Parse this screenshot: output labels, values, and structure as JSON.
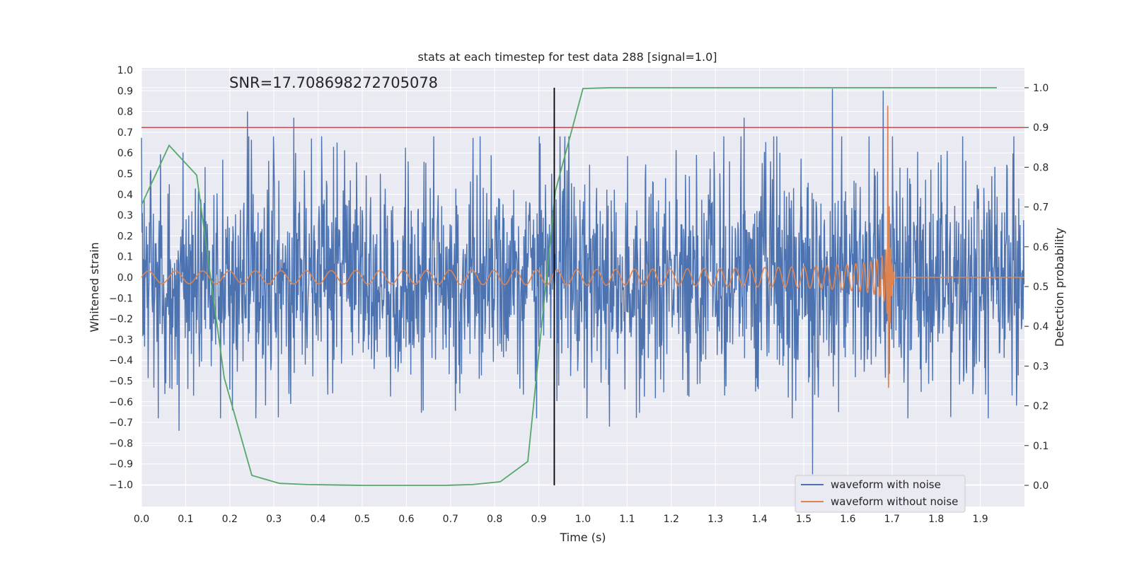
{
  "chart_data": {
    "type": "line",
    "title": "stats at each timestep for test data 288 [signal=1.0]",
    "xlabel": "Time (s)",
    "ylabel": "Whitened strain",
    "y2label": "Detection probability",
    "xlim": [
      0.0,
      2.0
    ],
    "ylim": [
      -1.09,
      1.0
    ],
    "y2lim": [
      -0.05,
      1.0
    ],
    "xticks": [
      "0.0",
      "0.1",
      "0.2",
      "0.3",
      "0.4",
      "0.5",
      "0.6",
      "0.7",
      "0.8",
      "0.9",
      "1.0",
      "1.1",
      "1.2",
      "1.3",
      "1.4",
      "1.5",
      "1.6",
      "1.7",
      "1.8",
      "1.9"
    ],
    "yticks": [
      "1.0",
      "0.9",
      "0.8",
      "0.7",
      "0.6",
      "0.5",
      "0.4",
      "0.3",
      "0.2",
      "0.1",
      "0.0",
      "−0.1",
      "−0.2",
      "−0.3",
      "−0.4",
      "−0.5",
      "−0.6",
      "−0.7",
      "−0.8",
      "−0.9",
      "−1.0"
    ],
    "y2ticks": [
      "1.0",
      "0.9",
      "0.8",
      "0.7",
      "0.6",
      "0.5",
      "0.4",
      "0.3",
      "0.2",
      "0.1",
      "0.0"
    ],
    "grid": true,
    "legend_position": "lower-right",
    "annotation": "SNR=17.708698272705078",
    "threshold_line": {
      "y2": 0.9,
      "color": "#c44e52"
    },
    "vertical_line": {
      "x": 0.935,
      "color": "#000000"
    },
    "series": [
      {
        "name": "waveform with noise",
        "color": "#4c72b0",
        "axis": "left",
        "generator": "noise",
        "sample_count": 2000,
        "amplitude_std": 0.26,
        "spikes": [
          {
            "x": 0.24,
            "y": 0.8
          },
          {
            "x": 0.345,
            "y": 0.77
          },
          {
            "x": 1.365,
            "y": 0.77
          },
          {
            "x": 1.52,
            "y": -0.95
          },
          {
            "x": 1.565,
            "y": 0.91
          },
          {
            "x": 1.68,
            "y": 0.9
          },
          {
            "x": 0.085,
            "y": -0.74
          },
          {
            "x": 1.06,
            "y": -0.72
          }
        ]
      },
      {
        "name": "waveform without noise",
        "color": "#dd8452",
        "axis": "left",
        "generator": "chirp",
        "merger_time": 1.69,
        "end_time": 1.705,
        "start_amplitude": 0.03,
        "peak_amplitude": 0.9,
        "start_frequency_hz": 16,
        "chirp_scale": 16
      },
      {
        "name": "",
        "color": "#55a868",
        "axis": "right",
        "x": [
          0.0,
          0.0625,
          0.125,
          0.1875,
          0.25,
          0.3125,
          0.375,
          0.4375,
          0.5,
          0.5625,
          0.625,
          0.6875,
          0.75,
          0.8125,
          0.875,
          0.9375,
          1.0,
          1.0625,
          1.125,
          1.1875,
          1.25,
          1.3125,
          1.375,
          1.4375,
          1.5,
          1.5625,
          1.625,
          1.6875,
          1.75,
          1.8125,
          1.875,
          1.9375
        ],
        "values": [
          0.705,
          0.855,
          0.78,
          0.27,
          0.025,
          0.005,
          0.002,
          0.001,
          0.0,
          0.0,
          0.0,
          0.0,
          0.002,
          0.009,
          0.06,
          0.74,
          0.998,
          1.0,
          1.0,
          1.0,
          1.0,
          1.0,
          1.0,
          1.0,
          1.0,
          1.0,
          1.0,
          1.0,
          1.0,
          1.0,
          1.0,
          1.0
        ]
      }
    ]
  }
}
